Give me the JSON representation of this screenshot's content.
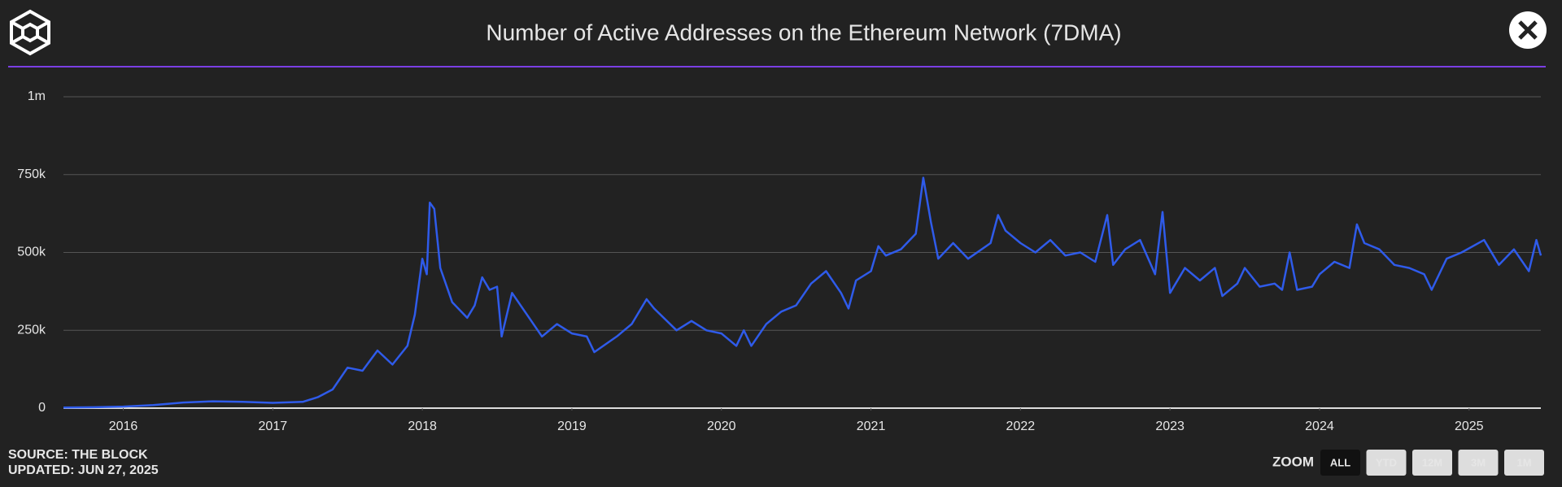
{
  "chart_data": {
    "type": "line",
    "title": "Number of Active Addresses on the Ethereum Network (7DMA)",
    "source": "SOURCE: THE BLOCK",
    "updated": "UPDATED: JUN 27, 2025",
    "x": [
      2015.6,
      2015.8,
      2016.0,
      2016.2,
      2016.4,
      2016.6,
      2016.8,
      2017.0,
      2017.2,
      2017.3,
      2017.4,
      2017.5,
      2017.6,
      2017.7,
      2017.8,
      2017.9,
      2017.95,
      2018.0,
      2018.03,
      2018.05,
      2018.08,
      2018.12,
      2018.2,
      2018.3,
      2018.35,
      2018.4,
      2018.45,
      2018.5,
      2018.53,
      2018.6,
      2018.7,
      2018.8,
      2018.9,
      2019.0,
      2019.1,
      2019.15,
      2019.3,
      2019.4,
      2019.5,
      2019.55,
      2019.7,
      2019.8,
      2019.9,
      2020.0,
      2020.1,
      2020.15,
      2020.2,
      2020.3,
      2020.4,
      2020.5,
      2020.6,
      2020.7,
      2020.8,
      2020.85,
      2020.9,
      2021.0,
      2021.05,
      2021.1,
      2021.2,
      2021.3,
      2021.35,
      2021.4,
      2021.45,
      2021.55,
      2021.65,
      2021.8,
      2021.85,
      2021.9,
      2022.0,
      2022.1,
      2022.2,
      2022.3,
      2022.4,
      2022.5,
      2022.58,
      2022.62,
      2022.7,
      2022.8,
      2022.9,
      2022.95,
      2023.0,
      2023.1,
      2023.2,
      2023.3,
      2023.35,
      2023.45,
      2023.5,
      2023.6,
      2023.7,
      2023.75,
      2023.8,
      2023.85,
      2023.95,
      2024.0,
      2024.1,
      2024.2,
      2024.25,
      2024.3,
      2024.4,
      2024.5,
      2024.6,
      2024.7,
      2024.75,
      2024.85,
      2024.95,
      2025.1,
      2025.2,
      2025.3,
      2025.4,
      2025.45,
      2025.48
    ],
    "series": [
      {
        "name": "Active Addresses",
        "color": "#2f5bea",
        "values": [
          2000,
          3000,
          5000,
          10000,
          18000,
          22000,
          20000,
          17000,
          20000,
          35000,
          60000,
          130000,
          120000,
          185000,
          140000,
          200000,
          300000,
          480000,
          430000,
          660000,
          640000,
          450000,
          340000,
          290000,
          330000,
          420000,
          380000,
          390000,
          230000,
          370000,
          300000,
          230000,
          270000,
          240000,
          230000,
          180000,
          230000,
          270000,
          350000,
          320000,
          250000,
          280000,
          250000,
          240000,
          200000,
          250000,
          200000,
          270000,
          310000,
          330000,
          400000,
          440000,
          370000,
          320000,
          410000,
          440000,
          520000,
          490000,
          510000,
          560000,
          740000,
          600000,
          480000,
          530000,
          480000,
          530000,
          620000,
          570000,
          530000,
          500000,
          540000,
          490000,
          500000,
          470000,
          620000,
          460000,
          510000,
          540000,
          430000,
          630000,
          370000,
          450000,
          410000,
          450000,
          360000,
          400000,
          450000,
          390000,
          400000,
          380000,
          500000,
          380000,
          390000,
          430000,
          470000,
          450000,
          590000,
          530000,
          510000,
          460000,
          450000,
          430000,
          380000,
          480000,
          500000,
          540000,
          460000,
          510000,
          440000,
          540000,
          490000
        ]
      }
    ],
    "xlim": [
      2015.6,
      2025.48
    ],
    "xticks": [
      2016,
      2017,
      2018,
      2019,
      2020,
      2021,
      2022,
      2023,
      2024,
      2025
    ],
    "ylim": [
      0,
      1000000
    ],
    "yticks": [
      0,
      {
        "value": 250000,
        "label": "250k"
      },
      {
        "value": 500000,
        "label": "500k"
      },
      {
        "value": 750000,
        "label": "750k"
      },
      {
        "value": 1000000,
        "label": "1m"
      }
    ],
    "grid": true
  },
  "zoom": {
    "label": "ZOOM",
    "buttons": [
      "ALL",
      "YTD",
      "12M",
      "3M",
      "1M"
    ],
    "active": 0
  }
}
